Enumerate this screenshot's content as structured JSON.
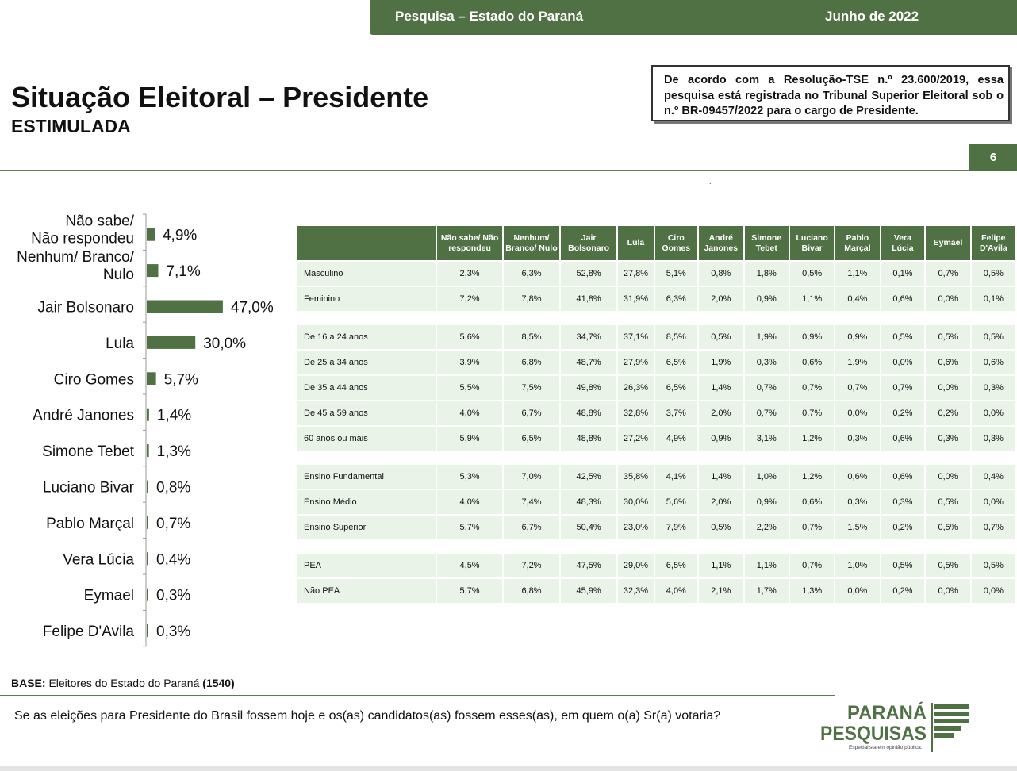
{
  "header": {
    "survey": "Pesquisa – Estado do Paraná",
    "date": "Junho de 2022",
    "title": "Situação Eleitoral – Presidente",
    "subtitle": "ESTIMULADA",
    "notice": "De acordo com a Resolução-TSE n.º 23.600/2019, essa pesquisa está registrada no Tribunal Superior Eleitoral sob o n.º BR-09457/2022 para o cargo de Presidente.",
    "page_number": "6",
    "dot": "."
  },
  "colors": {
    "brand_green": "#4f7143",
    "cell_bg": "#e9f3e8"
  },
  "chart_data": {
    "type": "bar",
    "orientation": "horizontal",
    "categories": [
      [
        "Não sabe/",
        "Não respondeu"
      ],
      [
        "Nenhum/ Branco/",
        "Nulo"
      ],
      [
        "Jair Bolsonaro"
      ],
      [
        "Lula"
      ],
      [
        "Ciro Gomes"
      ],
      [
        "André Janones"
      ],
      [
        "Simone Tebet"
      ],
      [
        "Luciano Bivar"
      ],
      [
        "Pablo Marçal"
      ],
      [
        "Vera Lúcia"
      ],
      [
        "Eymael"
      ],
      [
        "Felipe D'Avila"
      ]
    ],
    "values": [
      4.9,
      7.1,
      47.0,
      30.0,
      5.7,
      1.4,
      1.3,
      0.8,
      0.7,
      0.4,
      0.3,
      0.3
    ],
    "value_labels": [
      "4,9%",
      "7,1%",
      "47,0%",
      "30,0%",
      "5,7%",
      "1,4%",
      "1,3%",
      "0,8%",
      "0,7%",
      "0,4%",
      "0,3%",
      "0,3%"
    ],
    "color": "#4f7143"
  },
  "table": {
    "columns": [
      "Não sabe/ Não respondeu",
      "Nenhum/ Branco/ Nulo",
      "Jair Bolsonaro",
      "Lula",
      "Ciro Gomes",
      "André Janones",
      "Simone Tebet",
      "Luciano Bivar",
      "Pablo Marçal",
      "Vera Lúcia",
      "Eymael",
      "Felipe D'Avila"
    ],
    "groups": [
      [
        {
          "label": "Masculino",
          "values": [
            "2,3%",
            "6,3%",
            "52,8%",
            "27,8%",
            "5,1%",
            "0,8%",
            "1,8%",
            "0,5%",
            "1,1%",
            "0,1%",
            "0,7%",
            "0,5%"
          ]
        },
        {
          "label": "Feminino",
          "values": [
            "7,2%",
            "7,8%",
            "41,8%",
            "31,9%",
            "6,3%",
            "2,0%",
            "0,9%",
            "1,1%",
            "0,4%",
            "0,6%",
            "0,0%",
            "0,1%"
          ]
        }
      ],
      [
        {
          "label": "De 16 a 24 anos",
          "values": [
            "5,6%",
            "8,5%",
            "34,7%",
            "37,1%",
            "8,5%",
            "0,5%",
            "1,9%",
            "0,9%",
            "0,9%",
            "0,5%",
            "0,5%",
            "0,5%"
          ]
        },
        {
          "label": "De 25 a 34 anos",
          "values": [
            "3,9%",
            "6,8%",
            "48,7%",
            "27,9%",
            "6,5%",
            "1,9%",
            "0,3%",
            "0,6%",
            "1,9%",
            "0,0%",
            "0,6%",
            "0,6%"
          ]
        },
        {
          "label": "De 35 a 44 anos",
          "values": [
            "5,5%",
            "7,5%",
            "49,8%",
            "26,3%",
            "6,5%",
            "1,4%",
            "0,7%",
            "0,7%",
            "0,7%",
            "0,7%",
            "0,0%",
            "0,3%"
          ]
        },
        {
          "label": "De 45 a 59 anos",
          "values": [
            "4,0%",
            "6,7%",
            "48,8%",
            "32,8%",
            "3,7%",
            "2,0%",
            "0,7%",
            "0,7%",
            "0,0%",
            "0,2%",
            "0,2%",
            "0,0%"
          ]
        },
        {
          "label": "60 anos ou mais",
          "values": [
            "5,9%",
            "6,5%",
            "48,8%",
            "27,2%",
            "4,9%",
            "0,9%",
            "3,1%",
            "1,2%",
            "0,3%",
            "0,6%",
            "0,3%",
            "0,3%"
          ]
        }
      ],
      [
        {
          "label": "Ensino Fundamental",
          "values": [
            "5,3%",
            "7,0%",
            "42,5%",
            "35,8%",
            "4,1%",
            "1,4%",
            "1,0%",
            "1,2%",
            "0,6%",
            "0,6%",
            "0,0%",
            "0,4%"
          ]
        },
        {
          "label": "Ensino Médio",
          "values": [
            "4,0%",
            "7,4%",
            "48,3%",
            "30,0%",
            "5,6%",
            "2,0%",
            "0,9%",
            "0,6%",
            "0,3%",
            "0,3%",
            "0,5%",
            "0,0%"
          ]
        },
        {
          "label": "Ensino Superior",
          "values": [
            "5,7%",
            "6,7%",
            "50,4%",
            "23,0%",
            "7,9%",
            "0,5%",
            "2,2%",
            "0,7%",
            "1,5%",
            "0,2%",
            "0,5%",
            "0,7%"
          ]
        }
      ],
      [
        {
          "label": "PEA",
          "values": [
            "4,5%",
            "7,2%",
            "47,5%",
            "29,0%",
            "6,5%",
            "1,1%",
            "1,1%",
            "0,7%",
            "1,0%",
            "0,5%",
            "0,5%",
            "0,5%"
          ]
        },
        {
          "label": "Não PEA",
          "values": [
            "5,7%",
            "6,8%",
            "45,9%",
            "32,3%",
            "4,0%",
            "2,1%",
            "1,7%",
            "1,3%",
            "0,0%",
            "0,2%",
            "0,0%",
            "0,0%"
          ]
        }
      ]
    ]
  },
  "footer": {
    "base_label": "BASE:",
    "base_text": " Eleitores do Estado do Paraná ",
    "base_count": "(1540)",
    "question": "Se as eleições para Presidente do Brasil fossem hoje e os(as) candidatos(as) fossem esses(as), em quem o(a) Sr(a) votaria?"
  },
  "logo": {
    "line1": "PARANÁ",
    "line2": "PESQUISAS",
    "tagline": "Especialista em opinião pública."
  }
}
